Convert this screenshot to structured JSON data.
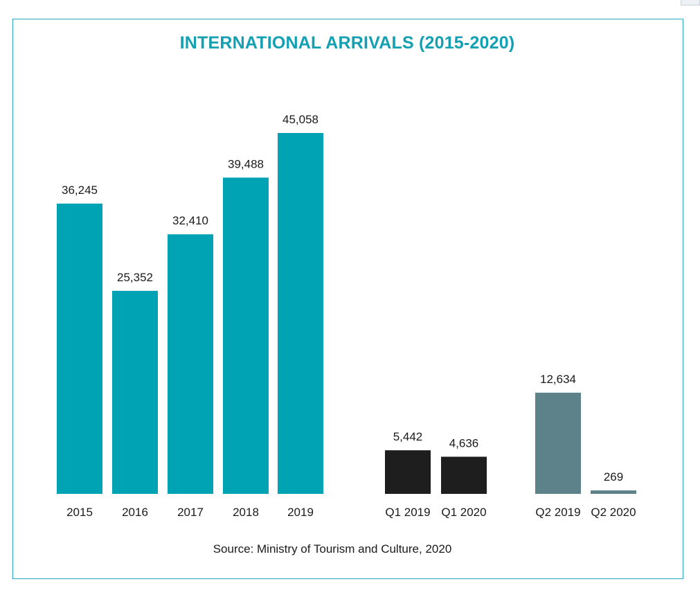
{
  "chart_data": {
    "type": "bar",
    "title": "INTERNATIONAL ARRIVALS (2015-2020)",
    "source": "Source: Ministry of Tourism and Culture, 2020",
    "categories": [
      "2015",
      "2016",
      "2017",
      "2018",
      "2019",
      "Q1 2019",
      "Q1 2020",
      "Q2 2019",
      "Q2 2020"
    ],
    "value_labels": [
      "36,245",
      "25,352",
      "32,410",
      "39,488",
      "45,058",
      "5,442",
      "4,636",
      "12,634",
      "269"
    ],
    "groups": [
      {
        "categories": [
          "2015",
          "2016",
          "2017",
          "2018",
          "2019"
        ],
        "values": [
          36245,
          25352,
          32410,
          39488,
          45058
        ],
        "color": "#00a3b4"
      },
      {
        "categories": [
          "Q1 2019",
          "Q1 2020"
        ],
        "values": [
          5442,
          4636
        ],
        "color": "#1e1e1e"
      },
      {
        "categories": [
          "Q2 2019",
          "Q2 2020"
        ],
        "values": [
          12634,
          269
        ],
        "color": "#5d8289"
      }
    ],
    "ylim": [
      0,
      45058
    ],
    "grid": false,
    "legend": false
  }
}
